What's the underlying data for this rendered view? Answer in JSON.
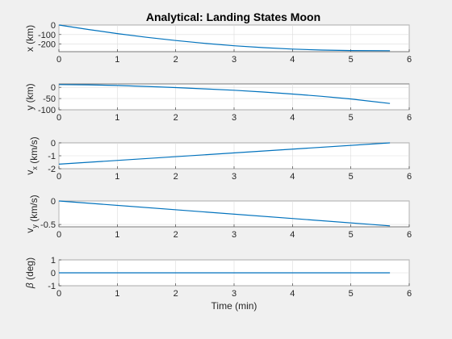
{
  "figure": {
    "title": "Analytical: Landing States Moon",
    "xlabel": "Time (min)",
    "line_color": "#0072bd"
  },
  "chart_data": [
    {
      "type": "line",
      "title": "Analytical: Landing States Moon",
      "ylabel_parts": [
        [
          "x (km)",
          ""
        ]
      ],
      "xlim": [
        0,
        6
      ],
      "ylim": [
        -280,
        0
      ],
      "xticks": [
        0,
        1,
        2,
        3,
        4,
        5,
        6
      ],
      "yticks": [
        0,
        -100,
        -200
      ],
      "grid": true,
      "series": [
        {
          "x": [
            0,
            0.5,
            1,
            1.5,
            2,
            2.5,
            3,
            3.5,
            4,
            4.5,
            5,
            5.67
          ],
          "y": [
            0,
            -47,
            -90,
            -129,
            -163,
            -193,
            -218,
            -238,
            -253,
            -263,
            -268,
            -270
          ]
        }
      ]
    },
    {
      "type": "line",
      "ylabel_parts": [
        [
          "y (km)",
          ""
        ]
      ],
      "xlim": [
        0,
        6
      ],
      "ylim": [
        -100,
        15
      ],
      "xticks": [
        0,
        1,
        2,
        3,
        4,
        5,
        6
      ],
      "yticks": [
        0,
        -50,
        -100
      ],
      "grid": true,
      "series": [
        {
          "x": [
            0,
            0.5,
            1,
            1.5,
            2,
            2.5,
            3,
            3.5,
            4,
            4.5,
            5,
            5.67
          ],
          "y": [
            12,
            11,
            8,
            4,
            -1,
            -7,
            -13,
            -21,
            -30,
            -40,
            -52,
            -72
          ]
        }
      ]
    },
    {
      "type": "line",
      "ylabel_parts": [
        [
          "v",
          ""
        ],
        [
          "x",
          "sub"
        ],
        [
          " (km/s)",
          ""
        ]
      ],
      "xlim": [
        0,
        6
      ],
      "ylim": [
        -2,
        0
      ],
      "xticks": [
        0,
        1,
        2,
        3,
        4,
        5,
        6
      ],
      "yticks": [
        0,
        -1,
        -2
      ],
      "grid": true,
      "series": [
        {
          "x": [
            0,
            5.67
          ],
          "y": [
            -1.65,
            0
          ]
        }
      ]
    },
    {
      "type": "line",
      "ylabel_parts": [
        [
          "v",
          ""
        ],
        [
          "y",
          "sub"
        ],
        [
          " (km/s)",
          ""
        ]
      ],
      "xlim": [
        0,
        6
      ],
      "ylim": [
        -0.55,
        0
      ],
      "xticks": [
        0,
        1,
        2,
        3,
        4,
        5,
        6
      ],
      "yticks": [
        0,
        -0.5
      ],
      "grid": true,
      "series": [
        {
          "x": [
            0,
            5.67
          ],
          "y": [
            0,
            -0.53
          ]
        }
      ]
    },
    {
      "type": "line",
      "ylabel_parts": [
        [
          "β",
          "greek"
        ],
        [
          " (deg)",
          ""
        ]
      ],
      "xlim": [
        0,
        6
      ],
      "ylim": [
        -1,
        1
      ],
      "xticks": [
        0,
        1,
        2,
        3,
        4,
        5,
        6
      ],
      "yticks": [
        1,
        0,
        -1
      ],
      "xlabel": "Time (min)",
      "grid": true,
      "series": [
        {
          "x": [
            0,
            5.67
          ],
          "y": [
            0,
            0
          ]
        }
      ]
    }
  ]
}
